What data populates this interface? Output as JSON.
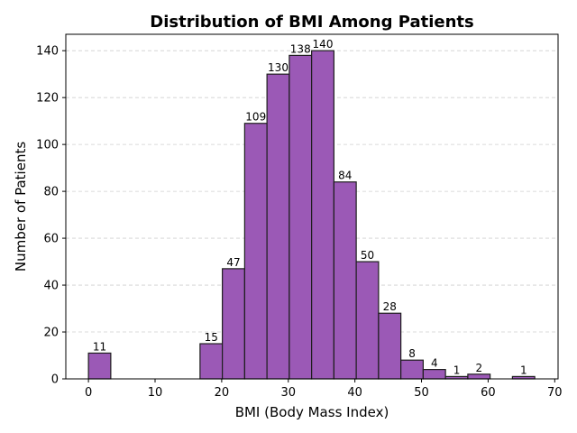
{
  "chart_data": {
    "type": "bar",
    "title": "Distribution of BMI Among Patients",
    "xlabel": "BMI (Body Mass Index)",
    "ylabel": "Number of Patients",
    "xlim": [
      -3.4,
      70.5
    ],
    "ylim": [
      0,
      147
    ],
    "xticks": [
      0,
      10,
      20,
      30,
      40,
      50,
      60,
      70
    ],
    "yticks": [
      0,
      20,
      40,
      60,
      80,
      100,
      120,
      140
    ],
    "grid": "y-dashed",
    "bin_width": 3.35,
    "bins": [
      {
        "left": 0.0,
        "value": 11
      },
      {
        "left": 16.75,
        "value": 15
      },
      {
        "left": 20.1,
        "value": 47
      },
      {
        "left": 23.45,
        "value": 109
      },
      {
        "left": 26.8,
        "value": 130
      },
      {
        "left": 30.15,
        "value": 138
      },
      {
        "left": 33.5,
        "value": 140
      },
      {
        "left": 36.85,
        "value": 84
      },
      {
        "left": 40.2,
        "value": 50
      },
      {
        "left": 43.55,
        "value": 28
      },
      {
        "left": 46.9,
        "value": 8
      },
      {
        "left": 50.25,
        "value": 4
      },
      {
        "left": 53.6,
        "value": 1
      },
      {
        "left": 56.95,
        "value": 2
      },
      {
        "left": 63.65,
        "value": 1
      }
    ],
    "bar_color": "#9b59b6",
    "edge_color": "#1e1e1e"
  }
}
